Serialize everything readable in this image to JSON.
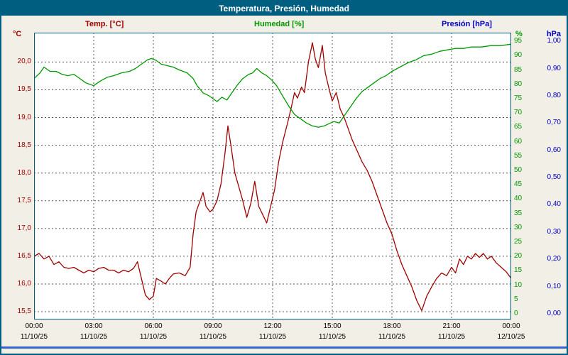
{
  "window": {
    "title": "Temperatura, Presión, Humedad"
  },
  "legend": {
    "temp": "Temp. [°C]",
    "humidity": "Humedad [%]",
    "pressure": "Presión [hPa]"
  },
  "units": {
    "temp": "°C",
    "humidity": "%",
    "pressure": "hPa"
  },
  "colors": {
    "frame": "#005f80",
    "titlebar_bg": "#005f80",
    "titlebar_text": "#ffffff",
    "background": "#f2efe6",
    "plot_bg": "#ffffff",
    "plot_border": "#005f80",
    "grid": "#555555",
    "temp": "#a00000",
    "humidity": "#009900",
    "pressure": "#0000cc",
    "x_labels": "#000000",
    "bottom_bar": "#3366cc"
  },
  "chart_data": {
    "type": "line",
    "title": "Temperatura, Presión, Humedad",
    "grid": {
      "horizontal_dashed": true,
      "vertical_dashed": true
    },
    "x_axis": {
      "range_hours": [
        0,
        24
      ],
      "ticks": [
        0,
        3,
        6,
        9,
        12,
        15,
        18,
        21,
        24
      ],
      "time_labels": [
        "00:00",
        "03:00",
        "06:00",
        "09:00",
        "12:00",
        "15:00",
        "18:00",
        "21:00",
        "00:00"
      ],
      "date_labels": [
        "11/10/25",
        "11/10/25",
        "11/10/25",
        "11/10/25",
        "11/10/25",
        "11/10/25",
        "11/10/25",
        "11/10/25",
        "12/10/25"
      ]
    },
    "y_axes": [
      {
        "id": "temp",
        "side": "left",
        "unit": "°C",
        "color": "#a00000",
        "min": 15.36,
        "max": 20.53,
        "decimals": 1,
        "ticks": [
          15.5,
          16.0,
          16.5,
          17.0,
          17.5,
          18.0,
          18.5,
          19.0,
          19.5,
          20.0
        ]
      },
      {
        "id": "humidity",
        "side": "right",
        "unit": "%",
        "color": "#009900",
        "min": -2,
        "max": 98,
        "decimals": 0,
        "ticks": [
          0,
          5,
          10,
          15,
          20,
          25,
          30,
          35,
          40,
          45,
          50,
          55,
          60,
          65,
          70,
          75,
          80,
          85,
          90,
          95
        ]
      },
      {
        "id": "pressure",
        "side": "right_outer",
        "unit": "hPa",
        "color": "#0000cc",
        "min": -0.0211,
        "max": 1.0316,
        "decimals": 2,
        "ticks": [
          0.0,
          0.1,
          0.2,
          0.3,
          0.4,
          0.5,
          0.6,
          0.7,
          0.8,
          0.9,
          1.0
        ]
      }
    ],
    "series": [
      {
        "name": "Temp. [°C]",
        "axis": "temp",
        "color": "#a00000",
        "points": [
          [
            0,
            16.5
          ],
          [
            0.25,
            16.55
          ],
          [
            0.5,
            16.45
          ],
          [
            0.75,
            16.5
          ],
          [
            1,
            16.35
          ],
          [
            1.25,
            16.4
          ],
          [
            1.5,
            16.3
          ],
          [
            1.75,
            16.28
          ],
          [
            2,
            16.3
          ],
          [
            2.25,
            16.25
          ],
          [
            2.5,
            16.2
          ],
          [
            2.75,
            16.25
          ],
          [
            3,
            16.22
          ],
          [
            3.25,
            16.28
          ],
          [
            3.5,
            16.3
          ],
          [
            3.75,
            16.25
          ],
          [
            4,
            16.25
          ],
          [
            4.25,
            16.2
          ],
          [
            4.5,
            16.25
          ],
          [
            4.75,
            16.22
          ],
          [
            5,
            16.28
          ],
          [
            5.2,
            16.4
          ],
          [
            5.4,
            16.1
          ],
          [
            5.6,
            15.8
          ],
          [
            5.8,
            15.72
          ],
          [
            6,
            15.78
          ],
          [
            6.15,
            16.1
          ],
          [
            6.4,
            16.05
          ],
          [
            6.6,
            16.0
          ],
          [
            6.8,
            16.1
          ],
          [
            7,
            16.18
          ],
          [
            7.3,
            16.2
          ],
          [
            7.6,
            16.15
          ],
          [
            7.85,
            16.3
          ],
          [
            8,
            16.9
          ],
          [
            8.15,
            17.3
          ],
          [
            8.35,
            17.5
          ],
          [
            8.5,
            17.65
          ],
          [
            8.65,
            17.4
          ],
          [
            8.85,
            17.3
          ],
          [
            9,
            17.35
          ],
          [
            9.2,
            17.5
          ],
          [
            9.4,
            17.8
          ],
          [
            9.6,
            18.35
          ],
          [
            9.75,
            18.85
          ],
          [
            9.9,
            18.5
          ],
          [
            10.1,
            18.0
          ],
          [
            10.3,
            17.75
          ],
          [
            10.5,
            17.5
          ],
          [
            10.7,
            17.2
          ],
          [
            10.9,
            17.45
          ],
          [
            11.1,
            17.85
          ],
          [
            11.3,
            17.4
          ],
          [
            11.5,
            17.25
          ],
          [
            11.7,
            17.1
          ],
          [
            11.9,
            17.4
          ],
          [
            12.1,
            17.7
          ],
          [
            12.3,
            18.2
          ],
          [
            12.5,
            18.55
          ],
          [
            12.75,
            18.9
          ],
          [
            12.95,
            19.2
          ],
          [
            13.1,
            19.45
          ],
          [
            13.25,
            19.35
          ],
          [
            13.45,
            19.55
          ],
          [
            13.6,
            19.45
          ],
          [
            13.8,
            20.0
          ],
          [
            14,
            20.35
          ],
          [
            14.15,
            20.05
          ],
          [
            14.3,
            19.9
          ],
          [
            14.5,
            20.3
          ],
          [
            14.65,
            19.8
          ],
          [
            14.85,
            19.5
          ],
          [
            15,
            19.3
          ],
          [
            15.2,
            19.45
          ],
          [
            15.4,
            19.15
          ],
          [
            15.6,
            19.0
          ],
          [
            15.8,
            18.8
          ],
          [
            16,
            18.6
          ],
          [
            16.25,
            18.4
          ],
          [
            16.5,
            18.2
          ],
          [
            16.75,
            18.05
          ],
          [
            17,
            17.85
          ],
          [
            17.25,
            17.6
          ],
          [
            17.5,
            17.35
          ],
          [
            17.75,
            17.1
          ],
          [
            18,
            16.9
          ],
          [
            18.25,
            16.6
          ],
          [
            18.5,
            16.35
          ],
          [
            18.75,
            16.15
          ],
          [
            19,
            15.95
          ],
          [
            19.25,
            15.7
          ],
          [
            19.5,
            15.52
          ],
          [
            19.75,
            15.78
          ],
          [
            20,
            15.95
          ],
          [
            20.25,
            16.1
          ],
          [
            20.5,
            16.2
          ],
          [
            20.75,
            16.15
          ],
          [
            21,
            16.3
          ],
          [
            21.2,
            16.2
          ],
          [
            21.4,
            16.45
          ],
          [
            21.6,
            16.35
          ],
          [
            21.8,
            16.5
          ],
          [
            22,
            16.45
          ],
          [
            22.2,
            16.55
          ],
          [
            22.4,
            16.48
          ],
          [
            22.6,
            16.55
          ],
          [
            22.8,
            16.45
          ],
          [
            23,
            16.5
          ],
          [
            23.25,
            16.38
          ],
          [
            23.5,
            16.3
          ],
          [
            23.75,
            16.22
          ],
          [
            24,
            16.1
          ]
        ]
      },
      {
        "name": "Humedad [%]",
        "axis": "humidity",
        "color": "#009900",
        "points": [
          [
            0,
            82
          ],
          [
            0.3,
            84
          ],
          [
            0.5,
            86
          ],
          [
            0.8,
            84.5
          ],
          [
            1.1,
            84.5
          ],
          [
            1.4,
            83.5
          ],
          [
            1.7,
            83
          ],
          [
            2,
            83.5
          ],
          [
            2.3,
            82
          ],
          [
            2.6,
            80.5
          ],
          [
            3,
            79.5
          ],
          [
            3.3,
            81
          ],
          [
            3.7,
            82.5
          ],
          [
            4,
            83
          ],
          [
            4.4,
            84
          ],
          [
            4.8,
            84.5
          ],
          [
            5.1,
            85.5
          ],
          [
            5.4,
            87
          ],
          [
            5.7,
            88.5
          ],
          [
            5.9,
            89
          ],
          [
            6.1,
            88.5
          ],
          [
            6.4,
            87
          ],
          [
            6.7,
            86.5
          ],
          [
            7,
            86
          ],
          [
            7.3,
            85
          ],
          [
            7.7,
            84
          ],
          [
            8,
            82
          ],
          [
            8.2,
            79.5
          ],
          [
            8.5,
            77
          ],
          [
            8.8,
            76
          ],
          [
            9,
            75
          ],
          [
            9.2,
            74
          ],
          [
            9.45,
            75.5
          ],
          [
            9.7,
            74.5
          ],
          [
            9.95,
            77
          ],
          [
            10.2,
            79.5
          ],
          [
            10.5,
            82
          ],
          [
            10.8,
            83.5
          ],
          [
            11,
            84
          ],
          [
            11.2,
            85.5
          ],
          [
            11.45,
            84
          ],
          [
            11.7,
            83
          ],
          [
            11.95,
            81.5
          ],
          [
            12.2,
            79.5
          ],
          [
            12.5,
            76
          ],
          [
            12.8,
            72.5
          ],
          [
            13.1,
            69.5
          ],
          [
            13.4,
            68
          ],
          [
            13.7,
            66.5
          ],
          [
            14,
            65.5
          ],
          [
            14.3,
            65
          ],
          [
            14.6,
            65.5
          ],
          [
            14.9,
            66.5
          ],
          [
            15.1,
            67
          ],
          [
            15.35,
            66.5
          ],
          [
            15.6,
            69
          ],
          [
            15.9,
            72
          ],
          [
            16.2,
            75
          ],
          [
            16.5,
            77.5
          ],
          [
            16.8,
            79
          ],
          [
            17.1,
            80.5
          ],
          [
            17.4,
            82
          ],
          [
            17.7,
            83
          ],
          [
            18,
            84.5
          ],
          [
            18.4,
            86
          ],
          [
            18.8,
            87.5
          ],
          [
            19.2,
            88.5
          ],
          [
            19.6,
            90
          ],
          [
            20,
            90.5
          ],
          [
            20.4,
            91.5
          ],
          [
            20.8,
            92
          ],
          [
            21.2,
            92.5
          ],
          [
            21.6,
            92.5
          ],
          [
            22,
            93
          ],
          [
            22.5,
            93
          ],
          [
            23,
            93.5
          ],
          [
            23.5,
            93.5
          ],
          [
            24,
            94
          ]
        ]
      },
      {
        "name": "Presión [hPa]",
        "axis": "pressure",
        "color": "#0000cc",
        "points": []
      }
    ]
  }
}
